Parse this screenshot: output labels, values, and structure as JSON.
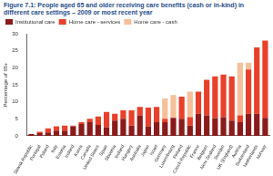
{
  "chart_data": {
    "type": "bar",
    "title": "Figure 7.1: People aged 65 and older receiving care benefits (cash or in-kind) in different care settings – 2009 or most recent year",
    "y_label": "Percentage of 65+",
    "categories": [
      "Slovak Republic",
      "Portugal",
      "Poland",
      "Italy",
      "Estonia",
      "Ireland",
      "Korea",
      "Canada",
      "United States",
      "Spain",
      "Slovenia",
      "Iceland",
      "Hungary",
      "Australia",
      "Japan",
      "Israel",
      "Germany",
      "Luxembourg",
      "Finland",
      "Czech Republic",
      "France",
      "Belgium",
      "New Zealand",
      "Sweden",
      "UK (England)",
      "Austria",
      "Switzerland",
      "Netherlands",
      "Norway"
    ],
    "series": [
      {
        "name": "Institutional care",
        "color": "#8b1a1a",
        "values": [
          0.5,
          0.8,
          1.0,
          1.5,
          1.5,
          2.8,
          3.5,
          4.0,
          3.2,
          2.5,
          4.5,
          5.0,
          3.0,
          6.0,
          2.8,
          4.0,
          4.0,
          5.3,
          5.0,
          3.0,
          6.5,
          6.0,
          5.2,
          5.5,
          4.5,
          4.0,
          6.5,
          6.5,
          5.3
        ]
      },
      {
        "name": "Home care - services",
        "color": "#e8402a",
        "values": [
          0,
          0.4,
          1.2,
          1.3,
          1.5,
          0.2,
          0.5,
          1.0,
          2.5,
          4.5,
          2.0,
          2.5,
          4.5,
          2.5,
          5.5,
          4.5,
          1.0,
          0,
          6.5,
          2.5,
          6.5,
          10.5,
          12.3,
          12.5,
          13.0,
          2.0,
          13.0,
          19.5,
          22.7
        ]
      },
      {
        "name": "Home care - cash",
        "color": "#f5c09a",
        "values": [
          0,
          0,
          0,
          0,
          0,
          0,
          0,
          0,
          0,
          0,
          0,
          0,
          0,
          0,
          0,
          0,
          6.0,
          6.7,
          0,
          7.5,
          0,
          0,
          0,
          0,
          0,
          15.5,
          2.0,
          0,
          0
        ]
      }
    ],
    "stacked": true,
    "ylim": [
      0,
      30
    ],
    "yticks": [
      0,
      5,
      10,
      15,
      20,
      25,
      30
    ],
    "grid": false,
    "legend": "top"
  }
}
